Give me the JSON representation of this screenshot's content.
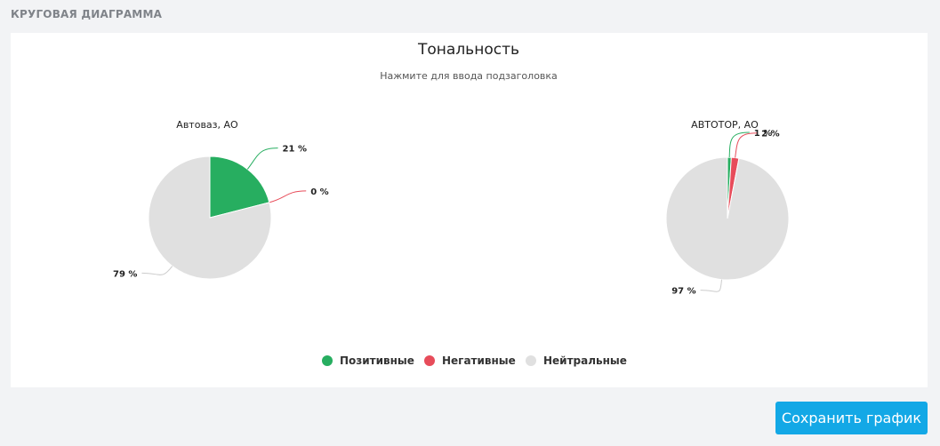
{
  "section": {
    "title": "КРУГОВАЯ ДИАГРАММА"
  },
  "chart_data": {
    "type": "pie",
    "title": "Тональность",
    "subtitle": "Нажмите для ввода подзаголовка",
    "legend_position": "bottom",
    "categories": [
      "Позитивные",
      "Негативные",
      "Нейтральные"
    ],
    "colors": {
      "Позитивные": "#27ae60",
      "Негативные": "#e74c5a",
      "Нейтральные": "#e0e0e0"
    },
    "pies": [
      {
        "name": "Автоваз, АО",
        "values": [
          21,
          0,
          79
        ],
        "labels": [
          "21 %",
          "0 %",
          "79 %"
        ]
      },
      {
        "name": "АВТОТОР, АО",
        "values": [
          1,
          2,
          97
        ],
        "labels": [
          "1 %",
          "2 %",
          "97 %"
        ]
      }
    ]
  },
  "actions": {
    "save_label": "Сохранить график"
  }
}
